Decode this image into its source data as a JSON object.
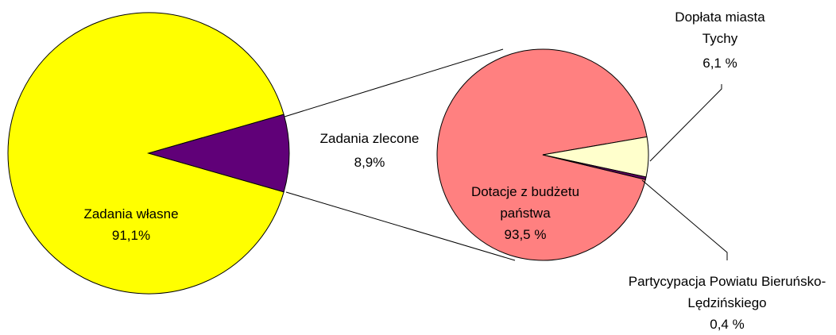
{
  "chart_data": [
    {
      "type": "pie",
      "categories": [
        "Zadania własne",
        "Zadania zlecone"
      ],
      "values": [
        91.1,
        8.9
      ],
      "value_labels": [
        "91,1%",
        "8,9%"
      ],
      "colors": [
        "#ffff00",
        "#600078"
      ]
    },
    {
      "type": "pie",
      "categories": [
        "Dotacje z budżetu państwa",
        "Dopłata miasta Tychy",
        "Partycypacja Powiatu Bieruńsko-Lędzińskiego"
      ],
      "values": [
        93.5,
        6.1,
        0.4
      ],
      "value_labels": [
        "93,5 %",
        "6,1 %",
        "0,4 %"
      ],
      "colors": [
        "#ff8080",
        "#ffffcc",
        "#600060"
      ]
    }
  ]
}
